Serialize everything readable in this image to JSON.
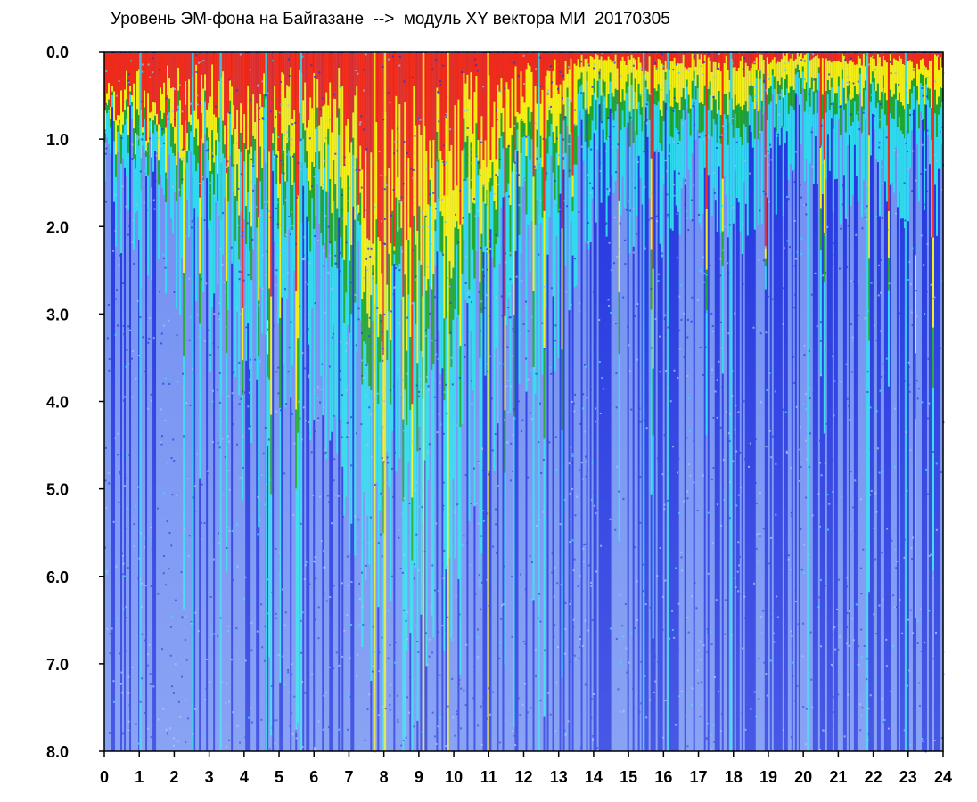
{
  "chart_data": {
    "type": "heatmap",
    "title": "Уровень ЭМ-фона на Байгазане  -->  модуль XY вектора МИ  20170305",
    "xlabel": "",
    "ylabel": "",
    "xlim": [
      0,
      24
    ],
    "ylim": [
      0.0,
      8.0
    ],
    "y_inverted": true,
    "x_ticks": [
      "0",
      "1",
      "2",
      "3",
      "4",
      "5",
      "6",
      "7",
      "8",
      "9",
      "10",
      "11",
      "12",
      "13",
      "14",
      "15",
      "16",
      "17",
      "18",
      "19",
      "20",
      "21",
      "22",
      "23",
      "24"
    ],
    "y_ticks": [
      "0.0",
      "1.0",
      "2.0",
      "3.0",
      "4.0",
      "5.0",
      "6.0",
      "7.0",
      "8.0"
    ],
    "grid": false,
    "legend": "none",
    "colors": {
      "low": "#1f34e0",
      "low_mid": "#6f8ef2",
      "mid": "#29d8ee",
      "mid_high": "#1ca52a",
      "high": "#f5ee10",
      "peak": "#ee2a1a"
    },
    "red_edge_depth_by_hour": [
      {
        "hour": 0,
        "y": 0.4
      },
      {
        "hour": 1,
        "y": 0.6
      },
      {
        "hour": 2,
        "y": 0.55
      },
      {
        "hour": 3,
        "y": 0.5
      },
      {
        "hour": 4,
        "y": 0.8
      },
      {
        "hour": 5,
        "y": 0.5
      },
      {
        "hour": 6,
        "y": 0.5
      },
      {
        "hour": 7,
        "y": 0.8
      },
      {
        "hour": 8,
        "y": 1.6
      },
      {
        "hour": 9,
        "y": 1.2
      },
      {
        "hour": 10,
        "y": 0.9
      },
      {
        "hour": 11,
        "y": 0.8
      },
      {
        "hour": 12,
        "y": 0.4
      },
      {
        "hour": 13,
        "y": 0.3
      },
      {
        "hour": 14,
        "y": 0.05
      },
      {
        "hour": 15,
        "y": 0.15
      },
      {
        "hour": 16,
        "y": 0.15
      },
      {
        "hour": 17,
        "y": 0.1
      },
      {
        "hour": 18,
        "y": 0.2
      },
      {
        "hour": 19,
        "y": 0.1
      },
      {
        "hour": 20,
        "y": 0.05
      },
      {
        "hour": 21,
        "y": 0.1
      },
      {
        "hour": 22,
        "y": 0.1
      },
      {
        "hour": 23,
        "y": 0.1
      },
      {
        "hour": 24,
        "y": 0.15
      }
    ],
    "cyan_edge_depth_by_hour": [
      {
        "hour": 0,
        "y": 1.3
      },
      {
        "hour": 1,
        "y": 1.6
      },
      {
        "hour": 2,
        "y": 1.8
      },
      {
        "hour": 3,
        "y": 2.2
      },
      {
        "hour": 4,
        "y": 3.0
      },
      {
        "hour": 5,
        "y": 2.6
      },
      {
        "hour": 6,
        "y": 2.8
      },
      {
        "hour": 7,
        "y": 3.5
      },
      {
        "hour": 8,
        "y": 5.0
      },
      {
        "hour": 9,
        "y": 4.5
      },
      {
        "hour": 10,
        "y": 4.0
      },
      {
        "hour": 11,
        "y": 3.5
      },
      {
        "hour": 12,
        "y": 2.6
      },
      {
        "hour": 13,
        "y": 2.2
      },
      {
        "hour": 14,
        "y": 1.2
      },
      {
        "hour": 15,
        "y": 1.5
      },
      {
        "hour": 16,
        "y": 1.4
      },
      {
        "hour": 17,
        "y": 1.2
      },
      {
        "hour": 18,
        "y": 1.5
      },
      {
        "hour": 19,
        "y": 1.2
      },
      {
        "hour": 20,
        "y": 1.0
      },
      {
        "hour": 21,
        "y": 1.2
      },
      {
        "hour": 22,
        "y": 1.1
      },
      {
        "hour": 23,
        "y": 1.2
      },
      {
        "hour": 24,
        "y": 1.3
      }
    ],
    "deep_blue_from_hour": 14
  }
}
